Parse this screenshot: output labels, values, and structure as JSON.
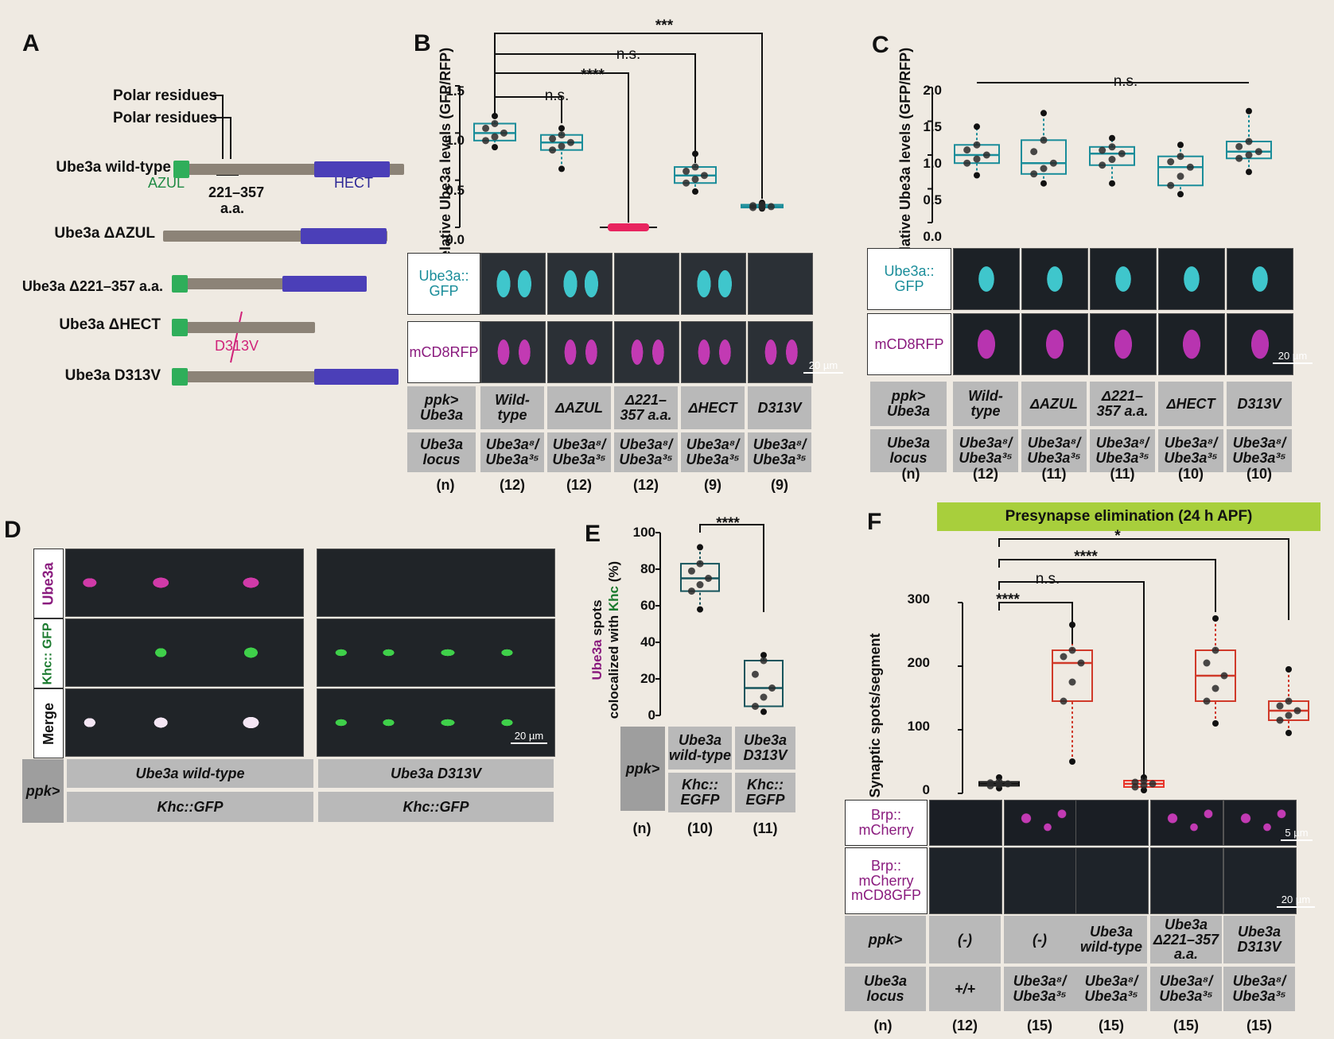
{
  "panelA": {
    "label": "A",
    "polar1": "Polar residues",
    "polar2": "Polar residues",
    "azul": "AZUL",
    "range": "221–357",
    "aa": "a.a.",
    "hect": "HECT",
    "d313v": "D313V",
    "constructs": [
      "Ube3a wild-type",
      "Ube3a ΔAZUL",
      "Ube3a Δ221–357 a.a.",
      "Ube3a ΔHECT",
      "Ube3a D313V"
    ],
    "colors": {
      "azul": "#2fae5a",
      "hect": "#4b3fb8",
      "backbone": "#8c8377",
      "d313v": "#d0237a"
    }
  },
  "panelB": {
    "label": "B",
    "ylabel": "Relative Ube3a levels (GFP/RFP)",
    "ticks": [
      "1.5",
      "1.0",
      "0.5",
      "0.0"
    ],
    "sig": [
      "***",
      "n.s.",
      "****",
      "n.s."
    ],
    "row_labels": [
      "Ube3a:: GFP",
      "mCD8RFP"
    ],
    "scale": "20 µm",
    "ppk": "ppk> Ube3a",
    "locus": "Ube3a locus",
    "n_label": "(n)",
    "genotypes": [
      "Wild- type",
      "ΔAZUL",
      "Δ221– 357 a.a.",
      "ΔHECT",
      "D313V"
    ],
    "loci": [
      "Ube3a⁸/ Ube3a³⁵",
      "Ube3a⁸/ Ube3a³⁵",
      "Ube3a⁸/ Ube3a³⁵",
      "Ube3a⁸/ Ube3a³⁵",
      "Ube3a⁸/ Ube3a³⁵"
    ],
    "n": [
      "(12)",
      "(12)",
      "(12)",
      "(9)",
      "(9)"
    ]
  },
  "panelC": {
    "label": "C",
    "ylabel": "Relative Ube3a levels (GFP/RFP)",
    "ticks": [
      "2.0",
      "1.5",
      "1.0",
      "0.5",
      "0.0"
    ],
    "sig": "n.s.",
    "row_labels": [
      "Ube3a:: GFP",
      "mCD8RFP"
    ],
    "scale": "20 µm",
    "ppk": "ppk> Ube3a",
    "locus": "Ube3a locus",
    "n_label": "(n)",
    "genotypes": [
      "Wild- type",
      "ΔAZUL",
      "Δ221– 357 a.a.",
      "ΔHECT",
      "D313V"
    ],
    "loci": [
      "Ube3a⁸/ Ube3a³⁵",
      "Ube3a⁸/ Ube3a³⁵",
      "Ube3a⁸/ Ube3a³⁵",
      "Ube3a⁸/ Ube3a³⁵",
      "Ube3a⁸/ Ube3a³⁵"
    ],
    "n": [
      "(12)",
      "(11)",
      "(11)",
      "(10)",
      "(10)"
    ]
  },
  "panelD": {
    "label": "D",
    "rows": [
      "Ube3a",
      "Khc:: GFP",
      "Merge"
    ],
    "scale": "20 µm",
    "ppk": "ppk>",
    "conditions": [
      "Ube3a wild-type",
      "Ube3a D313V"
    ],
    "khc": [
      "Khc::GFP",
      "Khc::GFP"
    ]
  },
  "panelE": {
    "label": "E",
    "ylabel_part1": "Ube3a",
    "ylabel_part2": " spots",
    "ylabel_line2a": "colocalized with ",
    "ylabel_line2b": "Khc",
    "ylabel_line2c": " (%)",
    "ticks": [
      "100",
      "80",
      "60",
      "40",
      "20",
      "0"
    ],
    "sig": "****",
    "ppk": "ppk>",
    "conditions": [
      "Ube3a wild-type",
      "Ube3a D313V"
    ],
    "khc": [
      "Khc:: EGFP",
      "Khc:: EGFP"
    ],
    "n_label": "(n)",
    "n": [
      "(10)",
      "(11)"
    ]
  },
  "panelF": {
    "label": "F",
    "banner": "Presynapse elimination (24 h APF)",
    "ylabel": "Synaptic spots/segment",
    "ticks": [
      "300",
      "200",
      "100",
      "0"
    ],
    "sig": [
      "*",
      "****",
      "n.s.",
      "****"
    ],
    "row_labels": [
      "Brp:: mCherry",
      "Brp:: mCherry mCD8GFP"
    ],
    "scale1": "5 µm",
    "scale2": "20 µm",
    "ppk": "ppk>",
    "locus": "Ube3a locus",
    "n_label": "(n)",
    "genotypes": [
      "(-)",
      "(-)",
      "Ube3a wild-type",
      "Ube3a Δ221–357 a.a.",
      "Ube3a D313V"
    ],
    "loci": [
      "+/+",
      "Ube3a⁸/ Ube3a³⁵",
      "Ube3a⁸/ Ube3a³⁵",
      "Ube3a⁸/ Ube3a³⁵",
      "Ube3a⁸/ Ube3a³⁵"
    ],
    "n": [
      "(12)",
      "(15)",
      "(15)",
      "(15)",
      "(15)"
    ],
    "banner_color": "#a8cf3c"
  },
  "chart_data": [
    {
      "type": "box",
      "panel": "B",
      "ylim": [
        0,
        1.5
      ],
      "categories": [
        "Wild-type",
        "ΔAZUL",
        "Δ221–357 a.a.",
        "ΔHECT",
        "D313V"
      ],
      "medians": [
        1.0,
        0.9,
        0.0,
        0.55,
        0.22
      ],
      "q1": [
        0.92,
        0.82,
        0.0,
        0.47,
        0.21
      ],
      "q3": [
        1.1,
        0.98,
        0.0,
        0.64,
        0.24
      ],
      "whisker_low": [
        0.85,
        0.62,
        0.0,
        0.38,
        0.2
      ],
      "whisker_high": [
        1.18,
        1.05,
        0.0,
        0.78,
        0.26
      ]
    },
    {
      "type": "box",
      "panel": "C",
      "ylim": [
        0,
        2.0
      ],
      "categories": [
        "Wild-type",
        "ΔAZUL",
        "Δ221–357 a.a.",
        "ΔHECT",
        "D313V"
      ],
      "medians": [
        1.0,
        0.88,
        1.02,
        0.82,
        1.05
      ],
      "q1": [
        0.88,
        0.72,
        0.85,
        0.55,
        0.95
      ],
      "q3": [
        1.15,
        1.22,
        1.12,
        0.98,
        1.2
      ],
      "whisker_low": [
        0.7,
        0.58,
        0.58,
        0.42,
        0.75
      ],
      "whisker_high": [
        1.42,
        1.62,
        1.25,
        1.15,
        1.65
      ]
    },
    {
      "type": "box",
      "panel": "E",
      "ylim": [
        0,
        100
      ],
      "categories": [
        "Ube3a wild-type",
        "Ube3a D313V"
      ],
      "medians": [
        75,
        15
      ],
      "q1": [
        68,
        5
      ],
      "q3": [
        83,
        30
      ],
      "whisker_low": [
        58,
        2
      ],
      "whisker_high": [
        92,
        33
      ]
    },
    {
      "type": "box",
      "panel": "F",
      "ylim": [
        0,
        300
      ],
      "categories": [
        "(-) +/+",
        "(-) Ube3a8/Ube3a35",
        "Ube3a wild-type",
        "Ube3a Δ221–357 a.a.",
        "Ube3a D313V"
      ],
      "medians": [
        15,
        205,
        15,
        185,
        130
      ],
      "q1": [
        12,
        145,
        10,
        145,
        115
      ],
      "q3": [
        18,
        225,
        20,
        225,
        145
      ],
      "whisker_low": [
        8,
        50,
        5,
        110,
        95
      ],
      "whisker_high": [
        25,
        265,
        25,
        275,
        195
      ]
    }
  ]
}
